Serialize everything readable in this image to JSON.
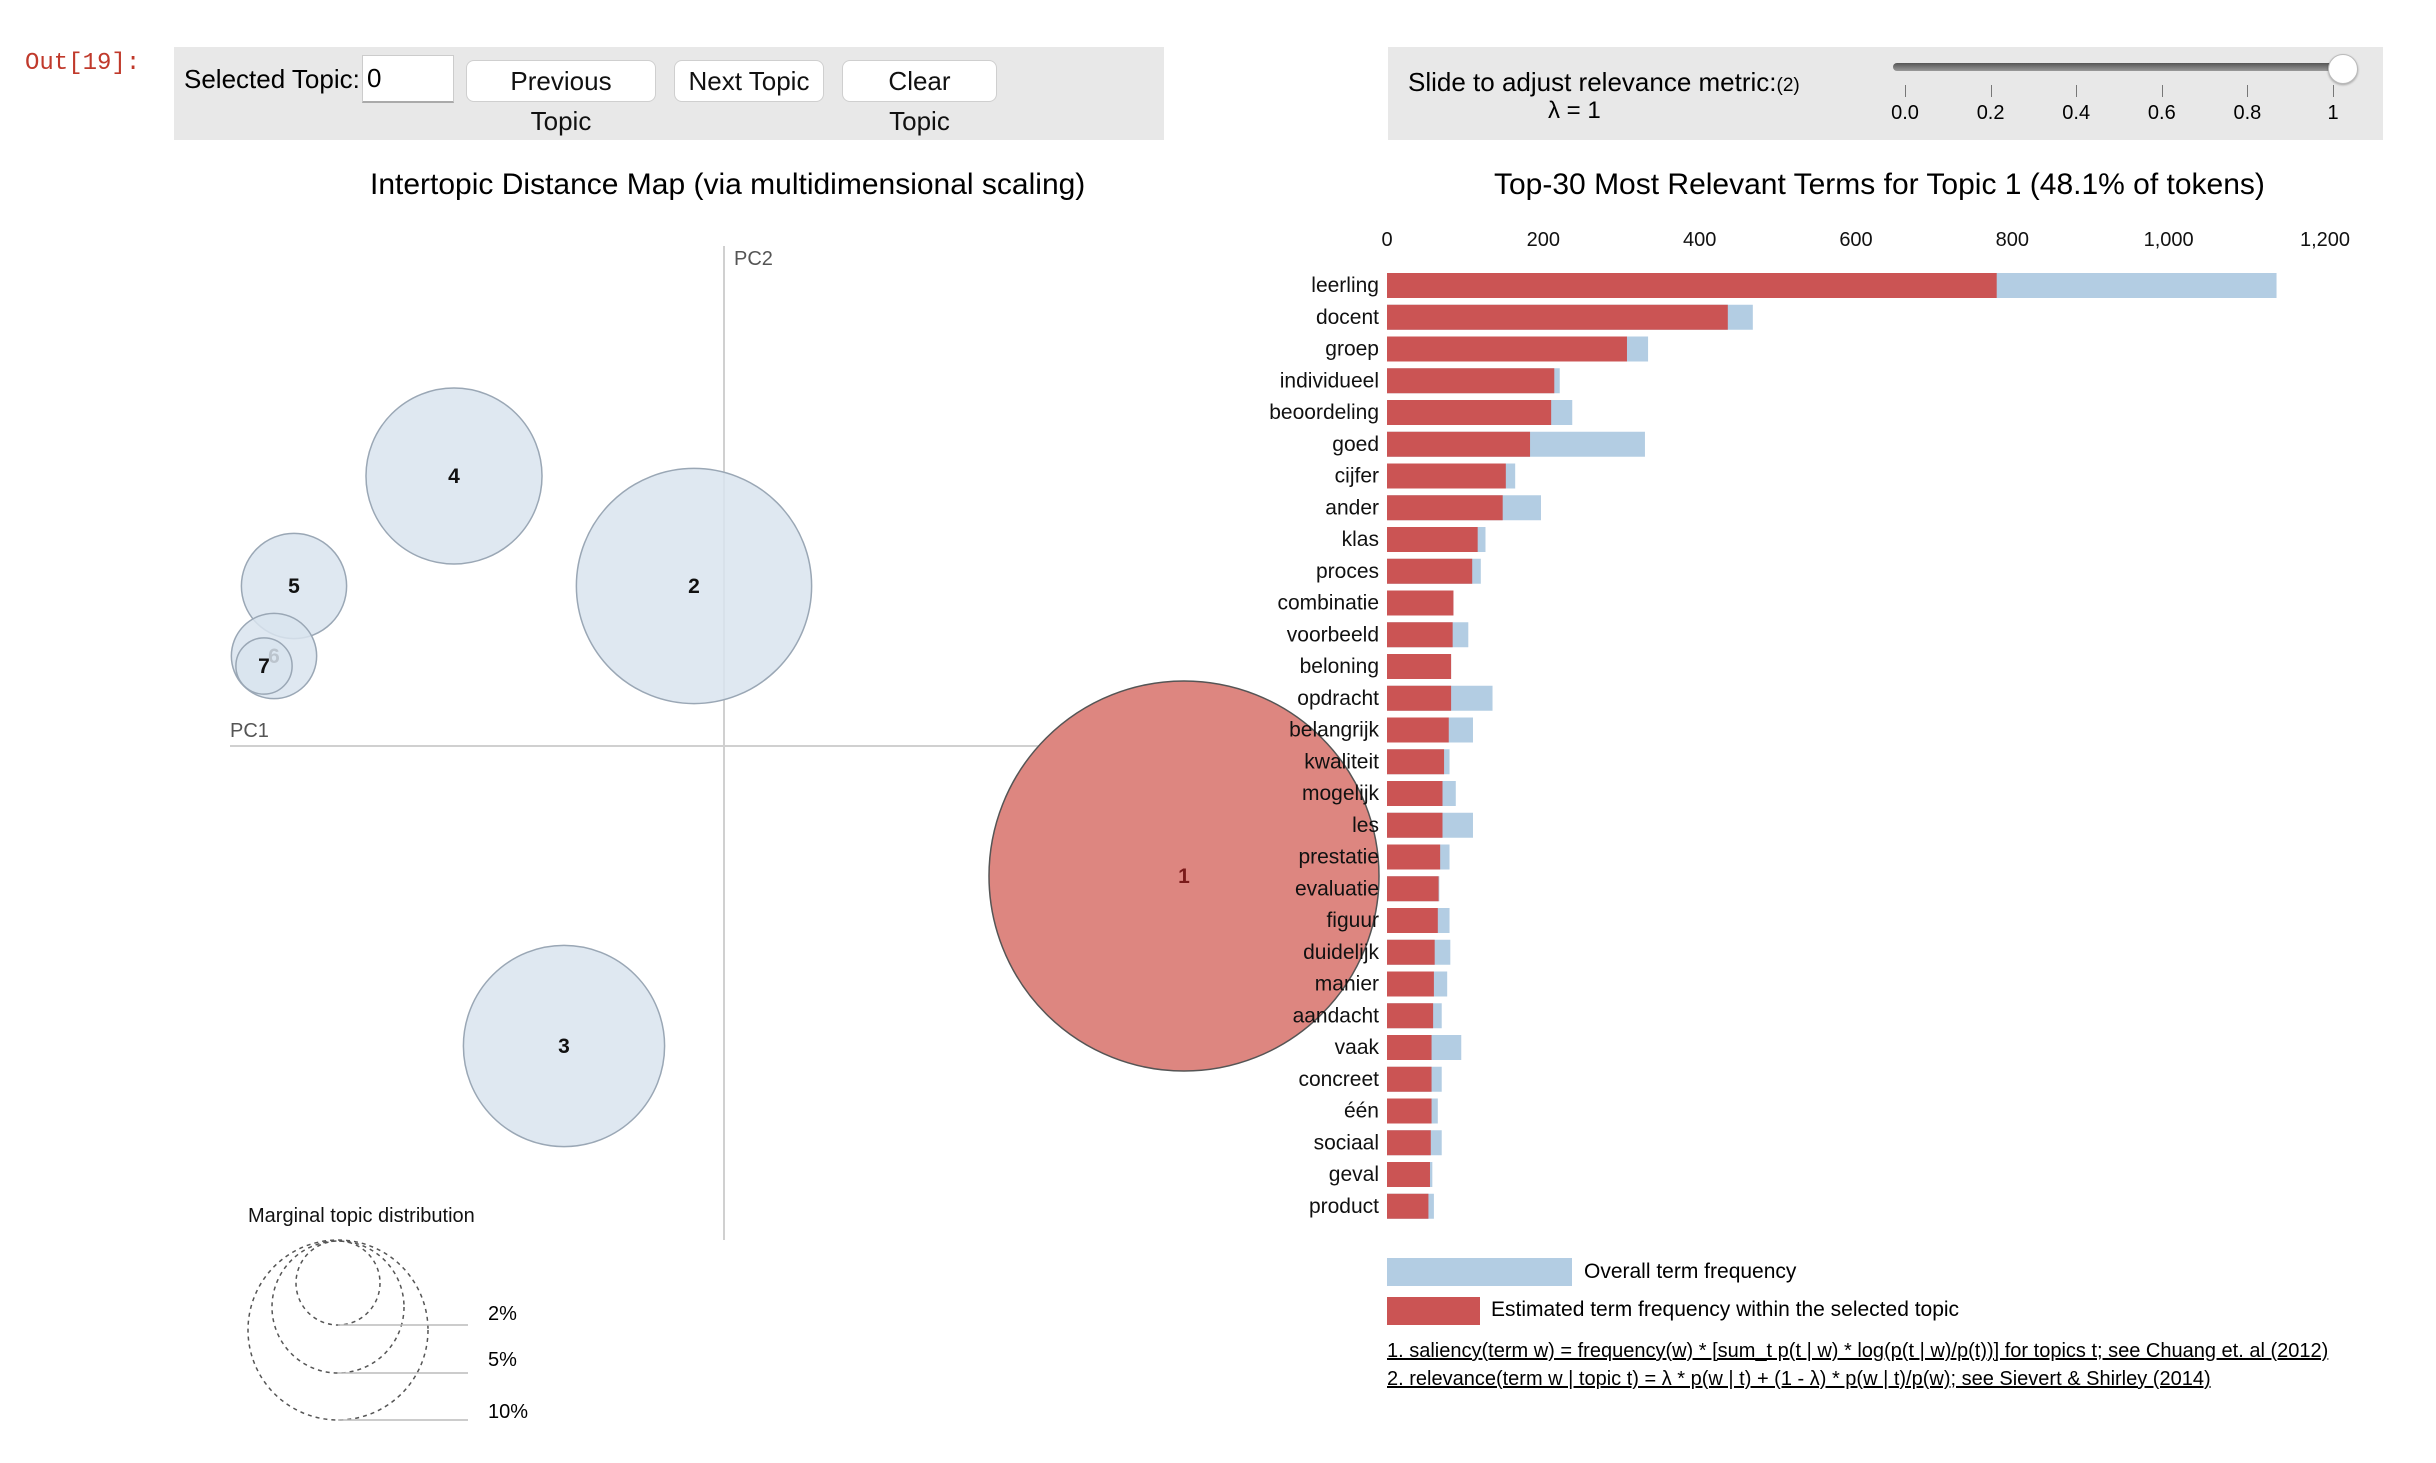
{
  "prompt": "Out[19]:",
  "topic_panel": {
    "label": "Selected Topic:",
    "value": "0",
    "prev_label": "Previous Topic",
    "next_label": "Next Topic",
    "clear_label": "Clear Topic"
  },
  "lambda_panel": {
    "label": "Slide to adjust relevance metric:",
    "sup": "(2)",
    "value_text": "λ = 1",
    "value": 1,
    "ticks": [
      "0.0",
      "0.2",
      "0.4",
      "0.6",
      "0.8",
      "1"
    ]
  },
  "map": {
    "title": "Intertopic Distance Map (via multidimensional scaling)",
    "pc1": "PC1",
    "pc2": "PC2",
    "topics": [
      {
        "label": "1",
        "pc1": 0.46,
        "pc2": -0.13,
        "share": 48.1,
        "selected": true
      },
      {
        "label": "2",
        "pc1": -0.03,
        "pc2": 0.16,
        "share": 17.5,
        "selected": false
      },
      {
        "label": "3",
        "pc1": -0.16,
        "pc2": -0.3,
        "share": 12.8,
        "selected": false
      },
      {
        "label": "4",
        "pc1": -0.27,
        "pc2": 0.27,
        "share": 9.8,
        "selected": false
      },
      {
        "label": "5",
        "pc1": -0.43,
        "pc2": 0.16,
        "share": 3.5,
        "selected": false
      },
      {
        "label": "6",
        "pc1": -0.45,
        "pc2": 0.09,
        "share": 2.3,
        "selected": false
      },
      {
        "label": "7",
        "pc1": -0.46,
        "pc2": 0.08,
        "share": 1.0,
        "selected": false
      }
    ],
    "marginal_title": "Marginal topic distribution",
    "marginal_labels": [
      "2%",
      "5%",
      "10%"
    ]
  },
  "chart_data": {
    "type": "bar",
    "title": "Top-30 Most Relevant Terms for Topic 1 (48.1% of tokens)",
    "xlim": [
      0,
      1200
    ],
    "xticks": [
      "0",
      "200",
      "400",
      "600",
      "800",
      "1,000",
      "1,200"
    ],
    "xtick_values": [
      0,
      200,
      400,
      600,
      800,
      1000,
      1200
    ],
    "categories": [
      "leerling",
      "docent",
      "groep",
      "individueel",
      "beoordeling",
      "goed",
      "cijfer",
      "ander",
      "klas",
      "proces",
      "combinatie",
      "voorbeeld",
      "beloning",
      "opdracht",
      "belangrijk",
      "kwaliteit",
      "mogelijk",
      "les",
      "prestatie",
      "evaluatie",
      "figuur",
      "duidelijk",
      "manier",
      "aandacht",
      "vaak",
      "concreet",
      "één",
      "sociaal",
      "geval",
      "product"
    ],
    "series": [
      {
        "name": "Overall term frequency",
        "color": "#b3cde3",
        "values": [
          1138,
          468,
          334,
          221,
          237,
          330,
          164,
          197,
          126,
          120,
          85,
          104,
          82,
          135,
          110,
          80,
          88,
          110,
          80,
          67,
          80,
          81,
          77,
          70,
          95,
          70,
          65,
          70,
          58,
          60
        ]
      },
      {
        "name": "Estimated term frequency within the selected topic",
        "color": "#cb5454",
        "values": [
          780,
          436,
          307,
          214,
          210,
          183,
          152,
          148,
          116,
          109,
          85,
          84,
          82,
          82,
          79,
          73,
          71,
          71,
          68,
          66,
          65,
          61,
          60,
          59,
          57,
          57,
          57,
          56,
          55,
          53
        ]
      }
    ]
  },
  "legend": {
    "overall": "Overall term frequency",
    "estimated": "Estimated term frequency within the selected topic"
  },
  "footnotes": {
    "saliency": "1. saliency(term w) = frequency(w) * [sum_t p(t | w) * log(p(t | w)/p(t))] for topics t; see Chuang et. al (2012)",
    "relevance": "2. relevance(term w | topic t) = λ * p(w | t) + (1 - λ) * p(w | t)/p(w); see Sievert & Shirley (2014)"
  },
  "colors": {
    "panel": "#e8e8e8",
    "topic_default": "#d9e4ef",
    "topic_selected": "#dd8680",
    "bar_overall": "#b3cde3",
    "bar_topic": "#cb5454"
  }
}
